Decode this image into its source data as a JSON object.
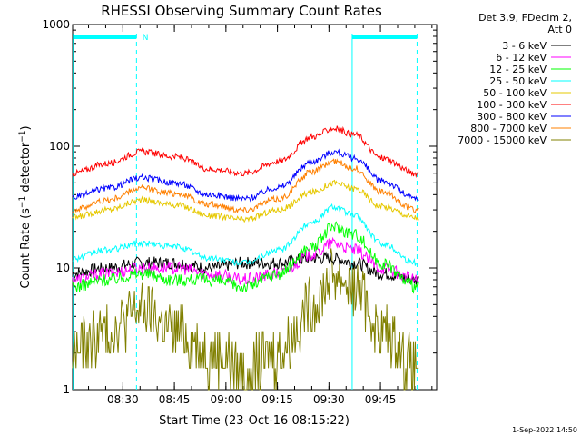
{
  "chart_data": {
    "type": "line",
    "title": "RHESSI Observing Summary Count Rates",
    "ylabel_main": "Count Rate (s",
    "ylabel_sup": "−1",
    "ylabel_mid": " detector",
    "ylabel_sup2": "−1",
    "ylabel_end": ")",
    "xlabel": "Start Time (23-Oct-16 08:15:22)",
    "x_axis": {
      "start_minutes": 0,
      "end_minutes": 106,
      "ticks": [
        {
          "minutes": 14.633,
          "label": "08:30"
        },
        {
          "minutes": 29.633,
          "label": "08:45"
        },
        {
          "minutes": 44.633,
          "label": "09:00"
        },
        {
          "minutes": 59.633,
          "label": "09:15"
        },
        {
          "minutes": 74.633,
          "label": "09:30"
        },
        {
          "minutes": 89.633,
          "label": "09:45"
        }
      ]
    },
    "y_axis": {
      "scale": "log",
      "ylim": [
        1,
        1000
      ],
      "ticks": [
        {
          "value": 1,
          "label": "1"
        },
        {
          "value": 10,
          "label": "10"
        },
        {
          "value": 100,
          "label": "100"
        },
        {
          "value": 1000,
          "label": "1000"
        }
      ]
    },
    "legend_header": [
      "Det 3,9, FDecim 2,",
      "Att 0"
    ],
    "legend_position": "right",
    "series": [
      {
        "name": "3 - 6 keV",
        "color": "#000000",
        "x": [
          0,
          10,
          20,
          30,
          40,
          50,
          60,
          70,
          76,
          82,
          90,
          100
        ],
        "y": [
          9,
          10,
          11,
          11,
          10,
          11,
          11,
          12,
          12,
          11,
          9,
          8
        ]
      },
      {
        "name": "6 - 12 keV",
        "color": "#ff00ff",
        "x": [
          0,
          10,
          20,
          30,
          40,
          50,
          60,
          70,
          76,
          82,
          90,
          100
        ],
        "y": [
          8,
          9,
          10,
          10,
          9,
          8,
          9,
          13,
          16,
          14,
          10,
          8
        ]
      },
      {
        "name": "12 - 25 keV",
        "color": "#00ff00",
        "x": [
          0,
          10,
          20,
          30,
          40,
          50,
          60,
          70,
          76,
          82,
          90,
          100
        ],
        "y": [
          7,
          8,
          9,
          8,
          8,
          7,
          9,
          15,
          22,
          19,
          11,
          7
        ]
      },
      {
        "name": "25 - 50 keV",
        "color": "#00ffff",
        "x": [
          0,
          10,
          20,
          30,
          40,
          50,
          60,
          70,
          76,
          82,
          90,
          100
        ],
        "y": [
          12,
          14,
          16,
          15,
          12,
          11,
          14,
          24,
          32,
          27,
          16,
          11
        ]
      },
      {
        "name": "50 - 100 keV",
        "color": "#e6c800",
        "x": [
          0,
          10,
          20,
          30,
          40,
          50,
          60,
          70,
          76,
          82,
          90,
          100
        ],
        "y": [
          26,
          30,
          36,
          33,
          27,
          25,
          30,
          42,
          50,
          45,
          32,
          26
        ]
      },
      {
        "name": "100 - 300 keV",
        "color": "#ff0000",
        "x": [
          0,
          10,
          20,
          30,
          40,
          50,
          60,
          70,
          76,
          82,
          90,
          100
        ],
        "y": [
          60,
          72,
          90,
          82,
          65,
          60,
          75,
          120,
          140,
          125,
          80,
          60
        ]
      },
      {
        "name": "300 - 800 keV",
        "color": "#0000ff",
        "x": [
          0,
          10,
          20,
          30,
          40,
          50,
          60,
          70,
          76,
          82,
          90,
          100
        ],
        "y": [
          38,
          45,
          55,
          50,
          40,
          37,
          46,
          75,
          90,
          80,
          52,
          37
        ]
      },
      {
        "name": "800 - 7000 keV",
        "color": "#ff8000",
        "x": [
          0,
          10,
          20,
          30,
          40,
          50,
          60,
          70,
          76,
          82,
          90,
          100
        ],
        "y": [
          30,
          36,
          45,
          41,
          33,
          30,
          37,
          62,
          75,
          66,
          42,
          30
        ]
      },
      {
        "name": "7000 - 15000 keV",
        "color": "#808000",
        "x": [
          0,
          10,
          20,
          30,
          40,
          50,
          60,
          70,
          76,
          82,
          90,
          100
        ],
        "y": [
          2,
          3,
          4.5,
          3,
          2,
          1.5,
          2,
          5,
          9,
          7,
          3,
          1.5
        ]
      }
    ],
    "markers": {
      "vertical_lines_minutes": [
        0.2,
        18.6,
        81.4,
        100.3
      ],
      "top_bars": [
        {
          "from": 0.2,
          "to": 18.6
        },
        {
          "from": 81.4,
          "to": 100.3
        }
      ],
      "top_label": "N",
      "top_label_minutes": 20.3
    }
  },
  "footer": {
    "date_stamp": "1-Sep-2022 14:50"
  }
}
